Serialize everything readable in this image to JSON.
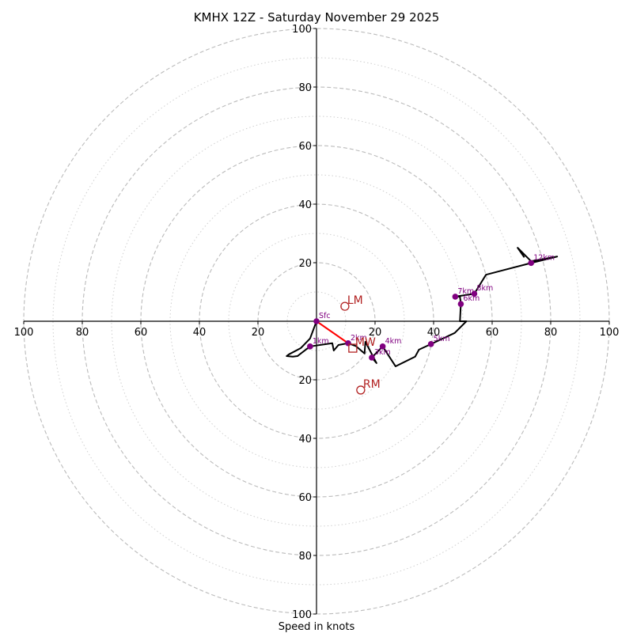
{
  "chart_data": {
    "type": "hodograph",
    "title": "KMHX 12Z - Saturday November 29 2025",
    "xlabel": "Speed in knots",
    "ylabel": "",
    "range_knots": [
      -100,
      100
    ],
    "ring_major_knots": [
      20,
      40,
      60,
      80,
      100
    ],
    "ring_minor_knots": [
      10,
      30,
      50,
      70,
      90
    ],
    "x_tick_labels": [
      "100",
      "80",
      "60",
      "40",
      "20",
      "20",
      "40",
      "60",
      "80",
      "100"
    ],
    "x_tick_values": [
      -100,
      -80,
      -60,
      -40,
      -20,
      20,
      40,
      60,
      80,
      100
    ],
    "y_tick_labels": [
      "100",
      "80",
      "60",
      "40",
      "20",
      "20",
      "40",
      "60",
      "80",
      "100"
    ],
    "y_tick_values": [
      100,
      80,
      60,
      40,
      20,
      -20,
      -40,
      -60,
      -80,
      -100
    ],
    "grid": true,
    "colors": {
      "trace": "#000000",
      "lowlevel": "#ff0000",
      "levels": "#800080",
      "storm": "#b22222",
      "rings": "#bbbbbb"
    },
    "trace_uv": [
      [
        0,
        0
      ],
      [
        -2.2,
        -5.9
      ],
      [
        -5.4,
        -9.2
      ],
      [
        -9.4,
        -11.3
      ],
      [
        -10.2,
        -11.9
      ],
      [
        -8.1,
        -12.1
      ],
      [
        -6.5,
        -11.9
      ],
      [
        -2.2,
        -8.6
      ],
      [
        5.4,
        -7.5
      ],
      [
        5.9,
        -10.0
      ],
      [
        7.5,
        -8.1
      ],
      [
        10.8,
        -7.5
      ],
      [
        13.5,
        -8.5
      ],
      [
        16.4,
        -11.0
      ],
      [
        16.7,
        -7.0
      ],
      [
        20.5,
        -14.3
      ],
      [
        18.9,
        -12.4
      ],
      [
        22.6,
        -8.6
      ],
      [
        27.0,
        -15.4
      ],
      [
        33.7,
        -12.1
      ],
      [
        35.0,
        -9.7
      ],
      [
        39.1,
        -7.8
      ],
      [
        47.2,
        -4.0
      ],
      [
        51.2,
        0
      ],
      [
        49.0,
        0
      ],
      [
        49.3,
        5.9
      ],
      [
        49.0,
        8.4
      ],
      [
        47.4,
        8.4
      ],
      [
        53.9,
        9.4
      ],
      [
        57.9,
        15.9
      ],
      [
        73.3,
        19.9
      ],
      [
        82.2,
        22.1
      ],
      [
        73.3,
        20.5
      ],
      [
        68.7,
        25.1
      ],
      [
        71.0,
        21.8
      ]
    ],
    "lowlevel_segment_uv": [
      [
        0,
        0
      ],
      [
        10.8,
        -7.5
      ]
    ],
    "levels": [
      {
        "label": "Sfc",
        "u": 0,
        "v": 0
      },
      {
        "label": "1km",
        "u": -2.2,
        "v": -8.6
      },
      {
        "label": "2km",
        "u": 10.8,
        "v": -7.5
      },
      {
        "label": "3km",
        "u": 18.9,
        "v": -12.4
      },
      {
        "label": "4km",
        "u": 22.6,
        "v": -8.6
      },
      {
        "label": "5km",
        "u": 39.1,
        "v": -7.8
      },
      {
        "label": "6km",
        "u": 49.3,
        "v": 5.9
      },
      {
        "label": "7km",
        "u": 47.4,
        "v": 8.4
      },
      {
        "label": "8km",
        "u": 53.9,
        "v": 9.4
      },
      {
        "label": "12km",
        "u": 73.3,
        "v": 19.9
      }
    ],
    "storm_markers": [
      {
        "label": "LM",
        "shape": "circle",
        "u": 9.7,
        "v": 5.1
      },
      {
        "label": "RM",
        "shape": "circle",
        "u": 15.1,
        "v": -23.5
      },
      {
        "label": "MW",
        "shape": "square",
        "u": 12.4,
        "v": -9.2
      }
    ]
  }
}
